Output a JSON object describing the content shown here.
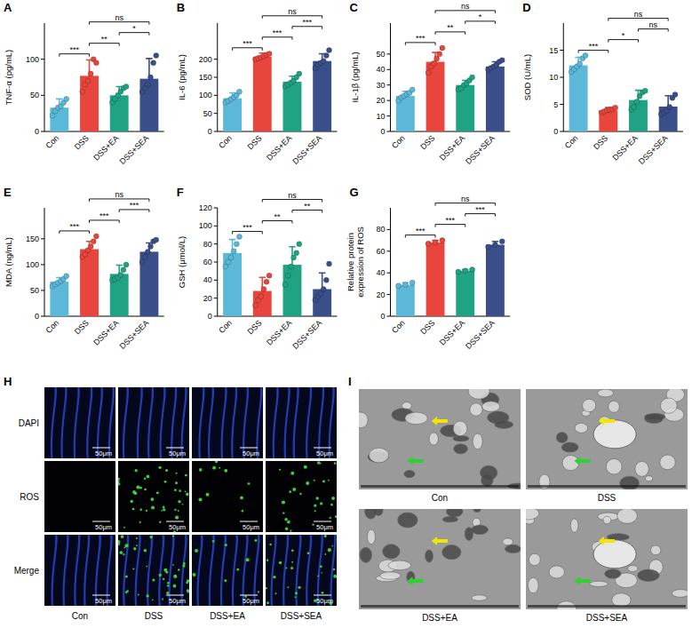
{
  "chart_data": [
    {
      "type": "bar",
      "panel": "A",
      "y_label": "TNF-α (pg/mL)",
      "categories": [
        "Con",
        "DSS",
        "DSS+EA",
        "DSS+SEA"
      ],
      "values": [
        33,
        77,
        50,
        73
      ],
      "errors": [
        12,
        22,
        12,
        28
      ],
      "points": [
        [
          22,
          28,
          33,
          35,
          40,
          45
        ],
        [
          55,
          65,
          70,
          80,
          100,
          95
        ],
        [
          40,
          45,
          50,
          55,
          60,
          62
        ],
        [
          55,
          60,
          65,
          75,
          95,
          105
        ]
      ],
      "colors": [
        "#5bb8d8",
        "#e8453c",
        "#1fa383",
        "#3a4f8a"
      ],
      "ylim": [
        0,
        150
      ],
      "yticks": [
        0,
        50,
        100
      ],
      "comparisons": [
        {
          "from": 0,
          "to": 1,
          "label": "***"
        },
        {
          "from": 1,
          "to": 2,
          "label": "**"
        },
        {
          "from": 2,
          "to": 3,
          "label": "*"
        },
        {
          "from": 1,
          "to": 3,
          "label": "ns"
        }
      ]
    },
    {
      "type": "bar",
      "panel": "B",
      "y_label": "IL-6 (pg/mL)",
      "categories": [
        "Con",
        "DSS",
        "DSS+EA",
        "DSS+SEA"
      ],
      "values": [
        92,
        207,
        138,
        195
      ],
      "errors": [
        15,
        10,
        15,
        20
      ],
      "points": [
        [
          80,
          85,
          90,
          95,
          100,
          110
        ],
        [
          200,
          203,
          205,
          208,
          212,
          215
        ],
        [
          125,
          130,
          135,
          140,
          150,
          160
        ],
        [
          175,
          185,
          190,
          195,
          210,
          225
        ]
      ],
      "colors": [
        "#5bb8d8",
        "#e8453c",
        "#1fa383",
        "#3a4f8a"
      ],
      "ylim": [
        0,
        300
      ],
      "yticks": [
        0,
        50,
        100,
        150,
        200
      ],
      "comparisons": [
        {
          "from": 0,
          "to": 1,
          "label": "***"
        },
        {
          "from": 1,
          "to": 2,
          "label": "***"
        },
        {
          "from": 2,
          "to": 3,
          "label": "***"
        },
        {
          "from": 1,
          "to": 3,
          "label": "ns"
        }
      ]
    },
    {
      "type": "bar",
      "panel": "C",
      "y_label": "IL-1β (pg/mL)",
      "categories": [
        "Con",
        "DSS",
        "DSS+EA",
        "DSS+SEA"
      ],
      "values": [
        23,
        45,
        30,
        42
      ],
      "errors": [
        3,
        6,
        3,
        3
      ],
      "points": [
        [
          20,
          22,
          23,
          24,
          25,
          27
        ],
        [
          38,
          42,
          44,
          47,
          50,
          54
        ],
        [
          27,
          28,
          30,
          31,
          33,
          35
        ],
        [
          40,
          41,
          42,
          43,
          45,
          46
        ]
      ],
      "colors": [
        "#5bb8d8",
        "#e8453c",
        "#1fa383",
        "#3a4f8a"
      ],
      "ylim": [
        0,
        70
      ],
      "yticks": [
        0,
        10,
        20,
        30,
        40,
        50
      ],
      "comparisons": [
        {
          "from": 0,
          "to": 1,
          "label": "***"
        },
        {
          "from": 1,
          "to": 2,
          "label": "**"
        },
        {
          "from": 2,
          "to": 3,
          "label": "*"
        },
        {
          "from": 1,
          "to": 3,
          "label": "ns"
        }
      ]
    },
    {
      "type": "bar",
      "panel": "D",
      "y_label": "SOD (U/mL)",
      "categories": [
        "Con",
        "DSS",
        "DSS+EA",
        "DSS+SEA"
      ],
      "values": [
        12.2,
        3.9,
        5.8,
        4.6
      ],
      "errors": [
        1.5,
        0.5,
        1.8,
        2
      ],
      "points": [
        [
          11,
          11.5,
          12,
          12.5,
          13.5,
          14
        ],
        [
          3.5,
          3.7,
          3.9,
          4,
          4.1,
          4.4
        ],
        [
          4,
          4.5,
          5.5,
          6.5,
          7.2,
          7.5
        ],
        [
          3.2,
          3.5,
          3.8,
          4.5,
          6.2,
          6.8
        ]
      ],
      "colors": [
        "#5bb8d8",
        "#e8453c",
        "#1fa383",
        "#3a4f8a"
      ],
      "ylim": [
        0,
        20
      ],
      "yticks": [
        0,
        5,
        10,
        15
      ],
      "comparisons": [
        {
          "from": 0,
          "to": 1,
          "label": "***"
        },
        {
          "from": 1,
          "to": 2,
          "label": "*"
        },
        {
          "from": 2,
          "to": 3,
          "label": "ns"
        },
        {
          "from": 1,
          "to": 3,
          "label": "ns"
        }
      ]
    },
    {
      "type": "bar",
      "panel": "E",
      "y_label": "MDA (ng/mL)",
      "categories": [
        "Con",
        "DSS",
        "DSS+EA",
        "DSS+SEA"
      ],
      "values": [
        67,
        130,
        82,
        125
      ],
      "errors": [
        8,
        15,
        17,
        17
      ],
      "points": [
        [
          58,
          62,
          65,
          68,
          72,
          78
        ],
        [
          115,
          120,
          128,
          135,
          145,
          155
        ],
        [
          70,
          72,
          75,
          80,
          90,
          100
        ],
        [
          105,
          115,
          125,
          135,
          145,
          148
        ]
      ],
      "colors": [
        "#5bb8d8",
        "#e8453c",
        "#1fa383",
        "#3a4f8a"
      ],
      "ylim": [
        0,
        210
      ],
      "yticks": [
        0,
        50,
        100,
        150
      ],
      "comparisons": [
        {
          "from": 0,
          "to": 1,
          "label": "***"
        },
        {
          "from": 1,
          "to": 2,
          "label": "***"
        },
        {
          "from": 2,
          "to": 3,
          "label": "***"
        },
        {
          "from": 1,
          "to": 3,
          "label": "ns"
        }
      ]
    },
    {
      "type": "bar",
      "panel": "F",
      "y_label": "GSH (μmol/L)",
      "categories": [
        "Con",
        "DSS",
        "DSS+EA",
        "DSS+SEA"
      ],
      "values": [
        70,
        28,
        57,
        30
      ],
      "errors": [
        15,
        15,
        20,
        18
      ],
      "points": [
        [
          55,
          60,
          65,
          72,
          80,
          88
        ],
        [
          12,
          18,
          22,
          30,
          38,
          45
        ],
        [
          35,
          45,
          55,
          65,
          70,
          80
        ],
        [
          18,
          22,
          25,
          30,
          40,
          58
        ]
      ],
      "colors": [
        "#5bb8d8",
        "#e8453c",
        "#1fa383",
        "#3a4f8a"
      ],
      "ylim": [
        0,
        120
      ],
      "yticks": [
        0,
        20,
        40,
        60,
        80,
        100,
        120
      ],
      "comparisons": [
        {
          "from": 0,
          "to": 1,
          "label": "***"
        },
        {
          "from": 1,
          "to": 2,
          "label": "**"
        },
        {
          "from": 2,
          "to": 3,
          "label": "**"
        },
        {
          "from": 1,
          "to": 3,
          "label": "ns"
        }
      ]
    },
    {
      "type": "bar",
      "panel": "G",
      "y_label": "Relative protein expression of ROS",
      "categories": [
        "Con",
        "DSS",
        "DSS+EA",
        "DSS+SEA"
      ],
      "values": [
        29,
        68,
        42,
        66
      ],
      "errors": [
        2,
        2,
        1,
        3
      ],
      "points": [
        [
          28,
          29,
          31
        ],
        [
          67,
          68,
          70
        ],
        [
          41,
          42,
          43
        ],
        [
          64,
          66,
          69
        ]
      ],
      "colors": [
        "#5bb8d8",
        "#e8453c",
        "#1fa383",
        "#3a4f8a"
      ],
      "ylim": [
        0,
        100
      ],
      "yticks": [
        0,
        20,
        40,
        60,
        80
      ],
      "comparisons": [
        {
          "from": 0,
          "to": 1,
          "label": "***"
        },
        {
          "from": 1,
          "to": 2,
          "label": "***"
        },
        {
          "from": 2,
          "to": 3,
          "label": "***"
        },
        {
          "from": 1,
          "to": 3,
          "label": "ns"
        }
      ]
    }
  ],
  "image_panels": [
    {
      "panel": "H",
      "row_labels": [
        "DAPI",
        "ROS",
        "Merge"
      ],
      "column_labels": [
        "Con",
        "DSS",
        "DSS+EA",
        "DSS+SEA"
      ],
      "scale_label": "50μm"
    },
    {
      "panel": "I",
      "labels": [
        "Con",
        "DSS",
        "DSS+EA",
        "DSS+SEA"
      ]
    }
  ]
}
